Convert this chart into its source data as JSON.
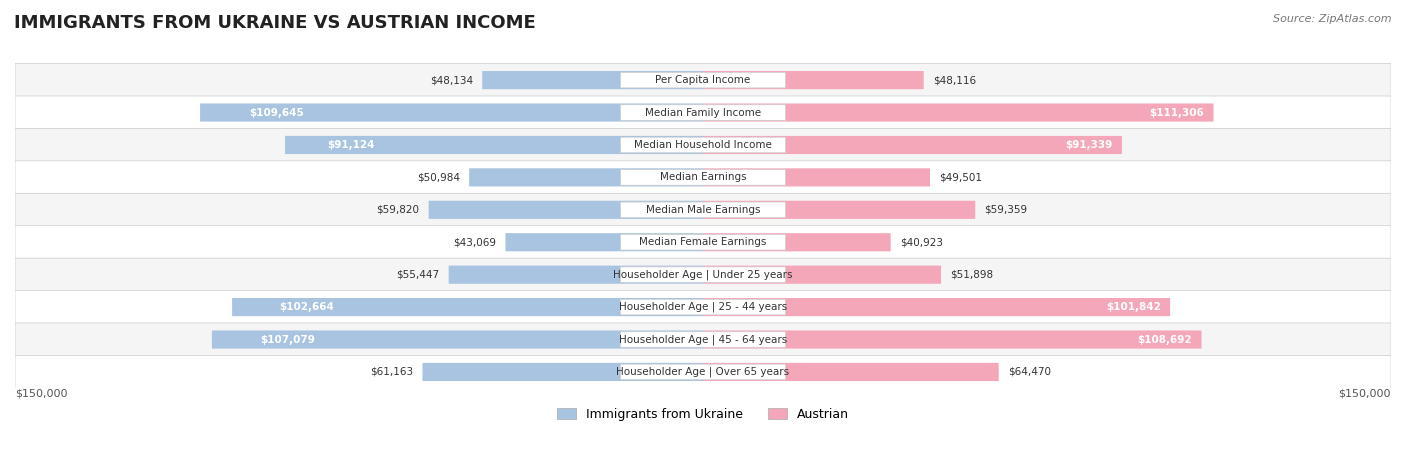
{
  "title": "IMMIGRANTS FROM UKRAINE VS AUSTRIAN INCOME",
  "source": "Source: ZipAtlas.com",
  "categories": [
    "Per Capita Income",
    "Median Family Income",
    "Median Household Income",
    "Median Earnings",
    "Median Male Earnings",
    "Median Female Earnings",
    "Householder Age | Under 25 years",
    "Householder Age | 25 - 44 years",
    "Householder Age | 45 - 64 years",
    "Householder Age | Over 65 years"
  ],
  "ukraine_values": [
    48134,
    109645,
    91124,
    50984,
    59820,
    43069,
    55447,
    102664,
    107079,
    61163
  ],
  "austrian_values": [
    48116,
    111306,
    91339,
    49501,
    59359,
    40923,
    51898,
    101842,
    108692,
    64470
  ],
  "ukraine_labels": [
    "$48,134",
    "$109,645",
    "$91,124",
    "$50,984",
    "$59,820",
    "$43,069",
    "$55,447",
    "$102,664",
    "$107,079",
    "$61,163"
  ],
  "austrian_labels": [
    "$48,116",
    "$111,306",
    "$91,339",
    "$49,501",
    "$59,359",
    "$40,923",
    "$51,898",
    "$101,842",
    "$108,692",
    "$64,470"
  ],
  "max_val": 150000,
  "ukraine_color": "#a8c4e0",
  "ukraine_color_dark": "#6fa8d4",
  "austrian_color": "#f4a7b9",
  "austrian_color_dark": "#ee82a0",
  "ukraine_label_bg": "#6fa8d4",
  "austrian_label_bg": "#ee82a0",
  "row_bg_light": "#f5f5f5",
  "row_bg_white": "#ffffff",
  "category_box_color": "#ffffff",
  "legend_ukraine": "Immigrants from Ukraine",
  "legend_austrian": "Austrian"
}
